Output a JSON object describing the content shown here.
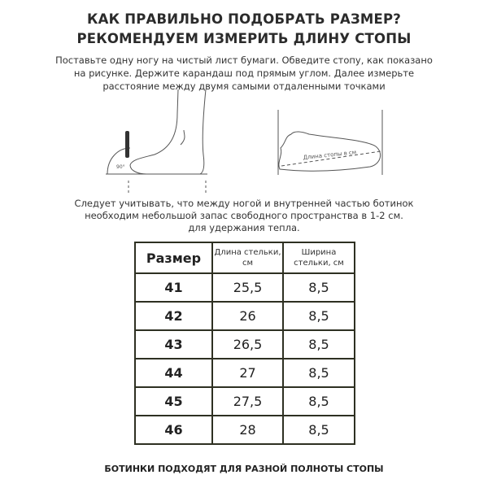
{
  "heading": {
    "line1": "КАК ПРАВИЛЬНО ПОДОБРАТЬ РАЗМЕР?",
    "line2": "РЕКОМЕНДУЕМ ИЗМЕРИТЬ ДЛИНУ СТОПЫ"
  },
  "intro": "Поставьте одну ногу на чистый лист бумаги. Обведите стопу, как показано на рисунке. Держите карандаш под прямым углом. Далее измерьте расстояние между двумя самыми отдаленными точками",
  "illustration": {
    "angle_label": "90°",
    "foot_length_label": "Длина стопы в см"
  },
  "note": {
    "line1": "Следует учитывать, что между ногой и внутренней частью ботинок",
    "line2": "необходим небольшой запас свободного пространства в 1-2 см.",
    "line3": "для удержания тепла."
  },
  "table": {
    "headers": [
      "Размер",
      "Длина стельки, см",
      "Ширина стельки, см"
    ],
    "rows": [
      [
        "41",
        "25,5",
        "8,5"
      ],
      [
        "42",
        "26",
        "8,5"
      ],
      [
        "43",
        "26,5",
        "8,5"
      ],
      [
        "44",
        "27",
        "8,5"
      ],
      [
        "45",
        "27,5",
        "8,5"
      ],
      [
        "46",
        "28",
        "8,5"
      ]
    ]
  },
  "footer": "БОТИНКИ ПОДХОДЯТ ДЛЯ РАЗНОЙ ПОЛНОТЫ СТОПЫ",
  "colors": {
    "table_border": "#2e3022",
    "text": "#222222"
  }
}
